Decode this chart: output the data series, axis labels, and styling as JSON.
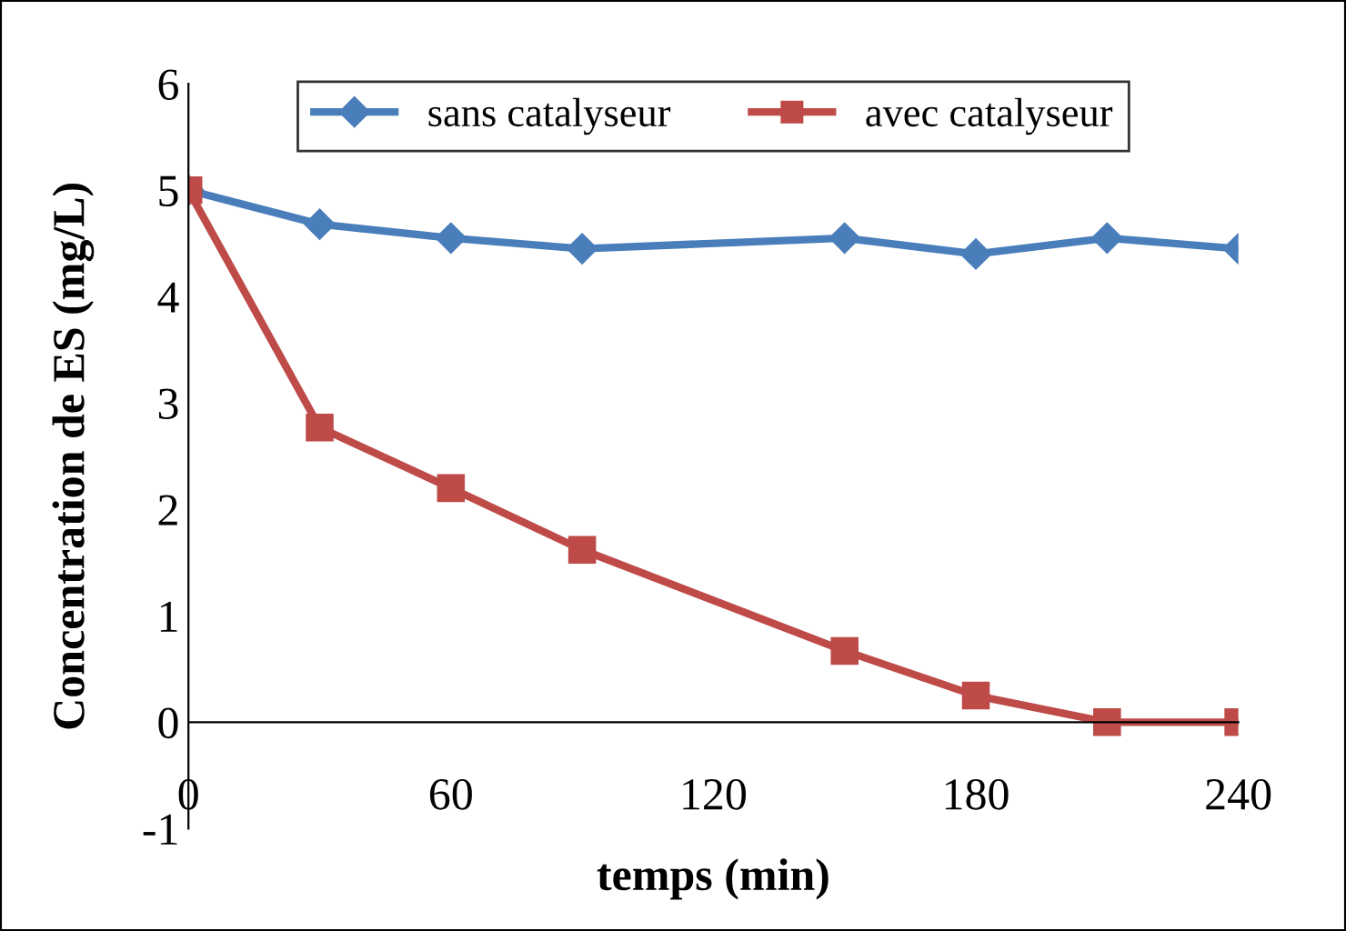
{
  "chart_data": {
    "type": "line",
    "xlabel": "temps (min)",
    "ylabel": "Concentration de ES (mg/L)",
    "x": [
      0,
      30,
      60,
      90,
      150,
      180,
      210,
      240
    ],
    "series": [
      {
        "name": "sans catalyseur",
        "color": "#4a7ebb",
        "marker": "diamond",
        "values": [
          5.0,
          4.68,
          4.55,
          4.45,
          4.55,
          4.4,
          4.55,
          4.45
        ]
      },
      {
        "name": "avec catalyseur",
        "color": "#be4b48",
        "marker": "square",
        "values": [
          5.0,
          2.77,
          2.2,
          1.62,
          0.67,
          0.25,
          0.0,
          0.0
        ]
      }
    ],
    "xlim": [
      0,
      240
    ],
    "xticks": [
      0,
      60,
      120,
      180,
      240
    ],
    "ylim": [
      -1,
      6
    ],
    "yticks": [
      -1,
      0,
      1,
      2,
      3,
      4,
      5,
      6
    ],
    "grid": false,
    "legend": "top",
    "line_style": "solid"
  }
}
